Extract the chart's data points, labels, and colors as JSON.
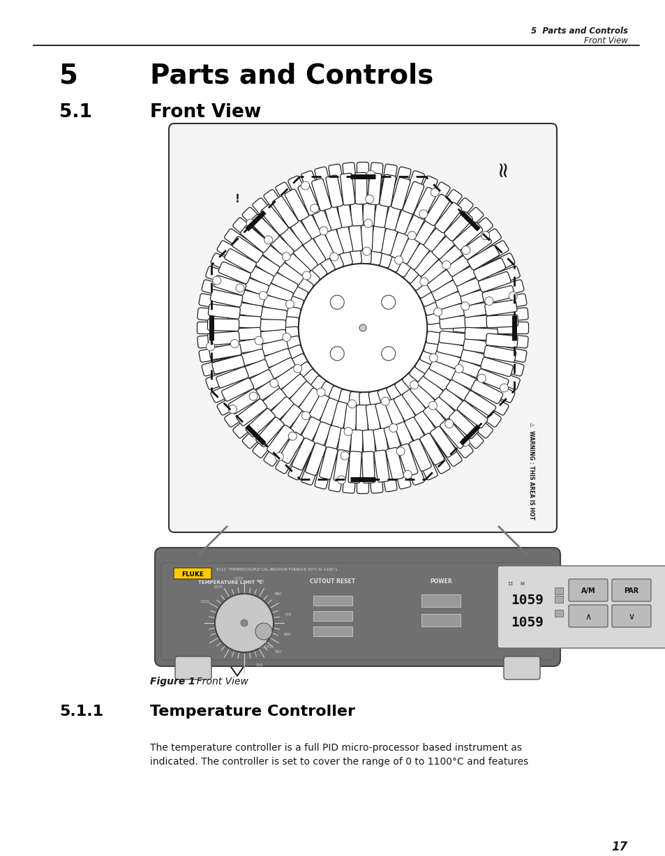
{
  "bg_color": "#ffffff",
  "header_right_bold": "5  Parts and Controls",
  "header_right_italic": "Front View",
  "chapter_number": "5",
  "chapter_title": "Parts and Controls",
  "section_number": "5.1",
  "section_title": "Front View",
  "subsection_number": "5.1.1",
  "subsection_title": "Temperature Controller",
  "figure_caption_bold": "Figure 1",
  "figure_caption_normal": "  Front View",
  "body_line1": "The temperature controller is a full PID micro-processor based instrument as",
  "body_line2": "indicated. The controller is set to cover the range of 0 to 1100°C and features",
  "page_number": "17",
  "plate_color": "#f5f5f5",
  "panel_color": "#6e6e6e",
  "panel_dark": "#5a5a5a",
  "display_bg": "#c8c8c8",
  "fluke_yellow": "#ffcc00",
  "line_color": "#1a1a1a",
  "dashed_color": "#111111"
}
